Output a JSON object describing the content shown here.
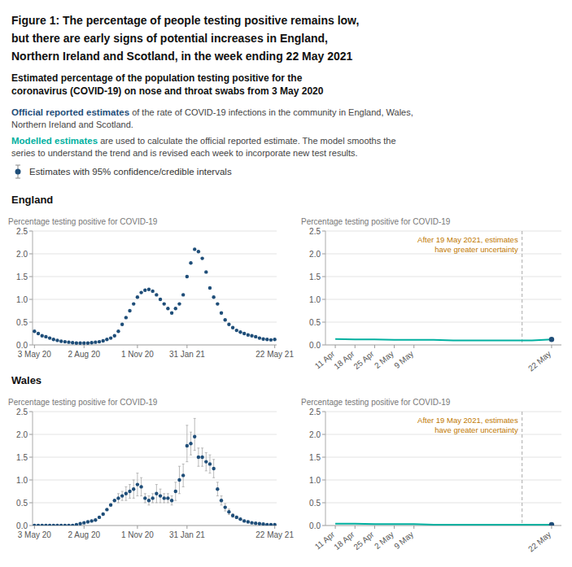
{
  "title": [
    "Figure 1: The percentage of people testing positive remains low,",
    "but there are early signs of potential increases in England,",
    "Northern Ireland and Scotland, in the week ending 22 May 2021"
  ],
  "subtitle": [
    "Estimated percentage of the population testing positive for the",
    "coronavirus (COVID-19) on nose and throat swabs from 3 May 2020"
  ],
  "notes": [
    {
      "lead": "Official reported estimates",
      "color": "#1f4e79",
      "text": [
        " of the rate of COVID-19 infections in the community in England, Wales,",
        "Northern Ireland and Scotland."
      ]
    },
    {
      "lead": "Modelled estimates",
      "color": "#00b0a0",
      "text": [
        " are used to calculate the official reported estimate. The model smooths the",
        "series to understand the trend and is revised each week to incorporate new test results."
      ]
    }
  ],
  "key": {
    "text": "Estimates with 95% confidence/credible intervals",
    "color": "#1f4e79"
  },
  "chart_data": [
    {
      "type": "scatter",
      "title": "England",
      "y_label": "Percentage testing positive for COVID-19",
      "categories": [
        "3 May 20",
        null,
        null,
        null,
        null,
        null,
        null,
        null,
        null,
        null,
        null,
        null,
        null,
        "2 Aug 20",
        null,
        null,
        null,
        null,
        null,
        null,
        null,
        null,
        null,
        null,
        null,
        null,
        null,
        "1 Nov 20",
        null,
        null,
        null,
        null,
        null,
        null,
        null,
        null,
        null,
        null,
        null,
        null,
        "31 Jan 21",
        null,
        null,
        null,
        null,
        null,
        null,
        null,
        null,
        null,
        null,
        null,
        null,
        null,
        null,
        null,
        null,
        null,
        null,
        null,
        null,
        null,
        null,
        "22 May 21"
      ],
      "values": [
        0.3,
        0.25,
        0.2,
        0.18,
        0.15,
        0.12,
        0.1,
        0.08,
        0.07,
        0.06,
        0.05,
        0.04,
        0.04,
        0.04,
        0.04,
        0.05,
        0.06,
        0.07,
        0.09,
        0.12,
        0.15,
        0.2,
        0.3,
        0.45,
        0.6,
        0.75,
        0.9,
        1.05,
        1.15,
        1.2,
        1.22,
        1.18,
        1.1,
        1.0,
        0.9,
        0.8,
        0.7,
        0.8,
        0.9,
        1.1,
        1.5,
        1.8,
        2.1,
        2.05,
        1.9,
        1.6,
        1.25,
        1.05,
        0.9,
        0.7,
        0.55,
        0.45,
        0.38,
        0.32,
        0.28,
        0.25,
        0.22,
        0.2,
        0.18,
        0.15,
        0.13,
        0.12,
        0.11,
        0.12
      ],
      "color": "#1f4e79",
      "ylim": [
        0,
        2.5
      ],
      "yticks": [
        {
          "value": 0.0,
          "label": "0.0"
        },
        0.5,
        {
          "value": 1.0,
          "label": "1.0"
        },
        1.5,
        {
          "value": 2.0,
          "label": "2.0"
        },
        2.5
      ],
      "grid": true
    },
    {
      "type": "line",
      "y_label": "Percentage testing positive for COVID-19",
      "categories": [
        "11 Apr",
        "18 Apr",
        "25 Apr",
        "2 May",
        "9 May",
        null,
        null,
        null,
        null,
        null,
        null,
        "22 May"
      ],
      "values": [
        0.13,
        0.12,
        0.12,
        0.11,
        0.11,
        0.11,
        0.1,
        0.1,
        0.1,
        0.1,
        0.1,
        0.12
      ],
      "color": "#00b0a0",
      "marker": "end",
      "ylim": [
        0,
        2.5
      ],
      "yticks": [
        {
          "value": 0.0,
          "label": "0.0"
        },
        0.5,
        {
          "value": 1.0,
          "label": "1.0"
        },
        1.5,
        {
          "value": 2.0,
          "label": "2.0"
        },
        2.5
      ],
      "grid": true,
      "annotations": [
        {
          "text": "After 19 May 2021, estimates\nhave greater uncertainty",
          "color": "#c07800",
          "x": 9.5
        }
      ]
    },
    {
      "type": "scatter",
      "title": "Wales",
      "y_label": "Percentage testing positive for COVID-19",
      "categories": [
        "3 May 20",
        null,
        null,
        null,
        null,
        null,
        null,
        null,
        null,
        null,
        null,
        null,
        null,
        "2 Aug 20",
        null,
        null,
        null,
        null,
        null,
        null,
        null,
        null,
        null,
        null,
        null,
        null,
        null,
        "1 Nov 20",
        null,
        null,
        null,
        null,
        null,
        null,
        null,
        null,
        null,
        null,
        null,
        null,
        "31 Jan 21",
        null,
        null,
        null,
        null,
        null,
        null,
        null,
        null,
        null,
        null,
        null,
        null,
        null,
        null,
        null,
        null,
        null,
        null,
        null,
        null,
        null,
        null,
        "22 May 21"
      ],
      "values": [
        0.0,
        0.0,
        0.0,
        0.0,
        0.0,
        0.0,
        0.0,
        0.0,
        0.0,
        0.0,
        0.0,
        0.02,
        0.04,
        0.06,
        0.08,
        0.1,
        0.12,
        0.18,
        0.25,
        0.35,
        0.45,
        0.55,
        0.6,
        0.65,
        0.7,
        0.75,
        0.8,
        0.9,
        0.85,
        0.6,
        0.55,
        0.6,
        0.7,
        0.65,
        0.6,
        0.6,
        0.55,
        0.75,
        1.0,
        1.1,
        1.75,
        1.8,
        1.95,
        1.5,
        1.5,
        1.4,
        1.35,
        1.25,
        0.8,
        0.55,
        0.4,
        0.3,
        0.22,
        0.18,
        0.14,
        0.1,
        0.08,
        0.06,
        0.05,
        0.04,
        0.03,
        0.02,
        0.02,
        0.02
      ],
      "error_low": [
        0,
        0,
        0,
        0,
        0,
        0,
        0,
        0,
        0,
        0,
        0,
        0,
        0,
        0,
        0,
        0,
        0,
        0,
        0,
        0,
        0,
        0,
        0.1,
        0.1,
        0.15,
        0.15,
        0.2,
        0.25,
        0.2,
        0.1,
        0.1,
        0.1,
        0.2,
        0.15,
        0.1,
        0.1,
        0.1,
        0.2,
        0.3,
        0.25,
        0.35,
        0.25,
        0.3,
        0.2,
        0.2,
        0.2,
        0.2,
        0.2,
        0.15,
        0.1,
        0.08,
        0.06,
        0.04,
        0.03,
        0.02,
        0.02,
        0.01,
        0.01,
        0.01,
        0.01,
        0.01,
        0.01,
        0.01,
        0.01
      ],
      "error_high": [
        0,
        0,
        0,
        0,
        0,
        0,
        0,
        0,
        0,
        0,
        0,
        0,
        0,
        0,
        0,
        0,
        0,
        0,
        0,
        0,
        0,
        0,
        0.1,
        0.1,
        0.15,
        0.15,
        0.2,
        0.25,
        0.2,
        0.1,
        0.1,
        0.1,
        0.2,
        0.15,
        0.1,
        0.1,
        0.1,
        0.2,
        0.3,
        0.25,
        0.45,
        0.25,
        0.4,
        0.2,
        0.2,
        0.2,
        0.2,
        0.2,
        0.15,
        0.1,
        0.08,
        0.06,
        0.04,
        0.03,
        0.02,
        0.02,
        0.01,
        0.01,
        0.01,
        0.01,
        0.01,
        0.01,
        0.01,
        0.01
      ],
      "color": "#1f4e79",
      "ylim": [
        0,
        2.5
      ],
      "yticks": [
        {
          "value": 0.0,
          "label": "0.0"
        },
        0.5,
        {
          "value": 1.0,
          "label": "1.0"
        },
        1.5,
        {
          "value": 2.0,
          "label": "2.0"
        },
        2.5
      ],
      "grid": true
    },
    {
      "type": "line",
      "y_label": "Percentage testing positive for COVID-19",
      "categories": [
        "11 Apr",
        "18 Apr",
        "25 Apr",
        "2 May",
        "9 May",
        null,
        null,
        null,
        null,
        null,
        null,
        "22 May"
      ],
      "values": [
        0.04,
        0.04,
        0.03,
        0.03,
        0.03,
        0.02,
        0.02,
        0.02,
        0.02,
        0.02,
        0.02,
        0.02
      ],
      "color": "#00b0a0",
      "marker": "end",
      "ylim": [
        0,
        2.5
      ],
      "yticks": [
        {
          "value": 0.0,
          "label": "0.0"
        },
        0.5,
        {
          "value": 1.0,
          "label": "1.0"
        },
        1.5,
        {
          "value": 2.0,
          "label": "2.0"
        },
        2.5
      ],
      "grid": true,
      "annotations": [
        {
          "text": "After 19 May 2021, estimates\nhave greater uncertainty",
          "color": "#c07800",
          "x": 9.5
        }
      ]
    }
  ]
}
